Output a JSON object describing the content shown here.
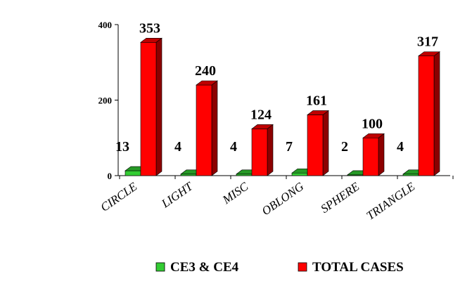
{
  "chart_data": {
    "type": "bar",
    "categories": [
      "CIRCLE",
      "LIGHT",
      "MISC",
      "OBLONG",
      "SPHERE",
      "TRIANGLE"
    ],
    "series": [
      {
        "name": "CE3 & CE4",
        "values": [
          13,
          4,
          4,
          7,
          2,
          4
        ],
        "color": "#33cc33",
        "labels": [
          "13",
          "4",
          "4",
          "7",
          "2",
          "4"
        ]
      },
      {
        "name": "TOTAL CASES",
        "values": [
          353,
          240,
          124,
          161,
          100,
          317
        ],
        "color": "#ff0000",
        "labels": [
          "353",
          "240",
          "124",
          "161",
          "100",
          "317"
        ]
      }
    ],
    "ylim": [
      0,
      400
    ],
    "yticks": [
      "0",
      "200",
      "400"
    ],
    "grid": false,
    "legend_position": "bottom",
    "style": "3d-columns"
  }
}
